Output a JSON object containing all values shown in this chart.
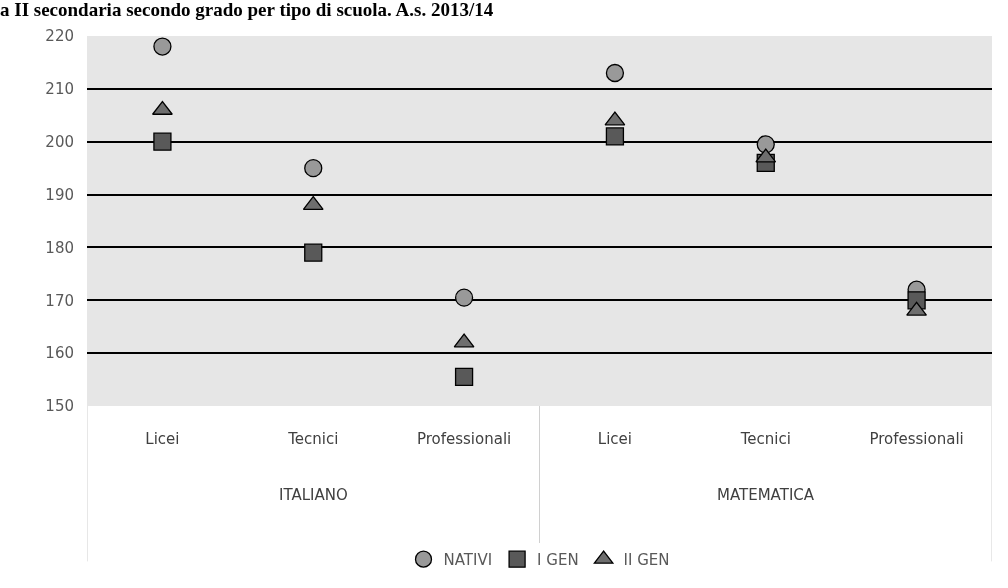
{
  "chart_data": {
    "type": "scatter",
    "title": "a II secondaria secondo grado per tipo di scuola. A.s. 2013/14",
    "categories": [
      "Licei",
      "Tecnici",
      "Professionali",
      "Licei",
      "Tecnici",
      "Professionali"
    ],
    "annotations": [
      "ITALIANO",
      "MATEMATICA"
    ],
    "series": [
      {
        "name": "NATIVI",
        "color": "#999999",
        "marker": "circle",
        "values": [
          218,
          195,
          170.5,
          213,
          199.5,
          172
        ]
      },
      {
        "name": "I GEN",
        "color": "#595959",
        "marker": "square",
        "values": [
          200,
          179,
          155.5,
          201,
          196,
          170
        ]
      },
      {
        "name": "II GEN",
        "color": "#6e6e6e",
        "marker": "triangle",
        "values": [
          206,
          188,
          162,
          204,
          197,
          168
        ]
      }
    ],
    "ylim": [
      150,
      220
    ],
    "yticks": [
      150,
      160,
      170,
      180,
      190,
      200,
      210,
      220
    ],
    "grid": "y",
    "legend": "bottom"
  }
}
